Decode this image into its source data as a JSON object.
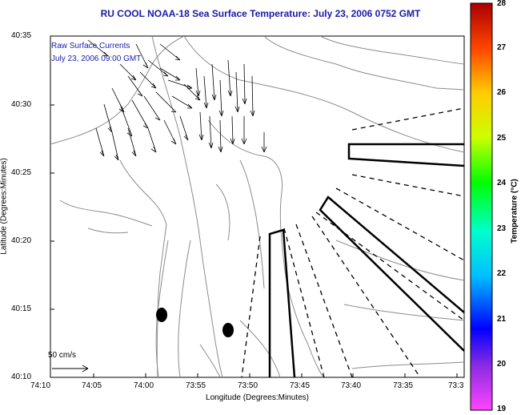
{
  "title": "RU COOL  NOAA-18  Sea Surface Temperature:  July 23, 2006 0752 GMT",
  "overlay": {
    "line1": "Raw Surface Currents",
    "line2": "July 23, 2006 09:00 GMT"
  },
  "axes": {
    "xlabel": "Longitude (Degrees:Minutes)",
    "ylabel": "Latitude (Degrees:Minutes)",
    "x_ticks": [
      "74:10",
      "74:05",
      "74:00",
      "73:55",
      "73:50",
      "73:45",
      "73:40",
      "73:35",
      "73:3"
    ],
    "y_ticks": [
      "40:35",
      "40:30",
      "40:25",
      "40:20",
      "40:15",
      "40:10"
    ]
  },
  "colorbar": {
    "title": "Temperature (°C)",
    "ticks": [
      "28",
      "27",
      "26",
      "25",
      "24",
      "23",
      "22",
      "21",
      "20",
      "19"
    ],
    "min": 19,
    "max": 28
  },
  "scale_arrow": {
    "label": "50 cm/s"
  },
  "colors": {
    "title": "#1a1aa8",
    "contour": "#8c8c8c",
    "lines": "#000000"
  },
  "icons": [
    "current-vector-arrow",
    "mooring-marker"
  ]
}
